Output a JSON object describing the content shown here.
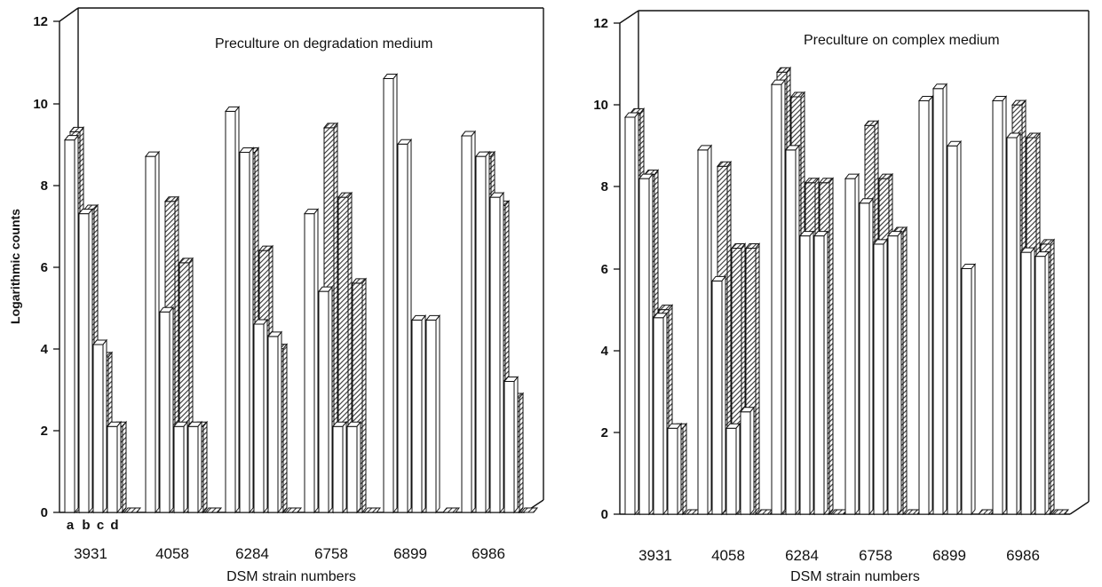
{
  "figure": {
    "bar_outline": "#111111",
    "hatch_color": "#333333"
  },
  "chart_data": [
    {
      "type": "bar",
      "title": "Preculture on degradation medium",
      "xlabel": "DSM strain numbers",
      "ylabel": "Logarithmic counts",
      "ylim": [
        0,
        12
      ],
      "yticks": [
        0,
        2,
        4,
        6,
        8,
        10,
        12
      ],
      "grid": false,
      "categories": [
        "3931",
        "4058",
        "6284",
        "6758",
        "6899",
        "6986"
      ],
      "sub_labels": [
        "a",
        "b",
        "c",
        "d"
      ],
      "series": [
        {
          "style": "open",
          "values": [
            [
              9.1,
              7.3,
              4.1,
              2.1
            ],
            [
              8.7,
              4.9,
              2.1,
              2.1
            ],
            [
              9.8,
              8.8,
              4.6,
              4.3
            ],
            [
              7.3,
              5.4,
              2.1,
              2.1
            ],
            [
              10.6,
              9.0,
              4.7,
              4.7
            ],
            [
              9.2,
              8.7,
              7.7,
              3.2
            ]
          ]
        },
        {
          "style": "hatched",
          "values": [
            [
              9.3,
              7.4,
              3.8,
              2.1
            ],
            [
              0,
              7.6,
              6.1,
              2.1
            ],
            [
              0,
              8.8,
              6.4,
              4.0
            ],
            [
              0,
              9.4,
              7.7,
              5.6
            ],
            [
              0,
              0,
              0,
              0
            ],
            [
              0,
              8.7,
              7.5,
              2.8
            ]
          ]
        }
      ]
    },
    {
      "type": "bar",
      "title": "Preculture on complex medium",
      "xlabel": "DSM strain numbers",
      "ylabel": "",
      "ylim": [
        0,
        12
      ],
      "yticks": [
        0,
        2,
        4,
        6,
        8,
        10,
        12
      ],
      "grid": false,
      "categories": [
        "3931",
        "4058",
        "6284",
        "6758",
        "6899",
        "6986"
      ],
      "sub_labels": [],
      "series": [
        {
          "style": "open",
          "values": [
            [
              9.7,
              8.2,
              4.8,
              2.1
            ],
            [
              8.9,
              5.7,
              2.1,
              2.5
            ],
            [
              10.5,
              8.9,
              6.8,
              6.8
            ],
            [
              8.2,
              7.6,
              6.6,
              6.8
            ],
            [
              10.1,
              10.4,
              9.0,
              6.0
            ],
            [
              10.1,
              9.2,
              6.4,
              6.3
            ]
          ]
        },
        {
          "style": "hatched",
          "values": [
            [
              9.8,
              8.3,
              5.0,
              2.1
            ],
            [
              0,
              8.5,
              6.5,
              6.5
            ],
            [
              10.8,
              10.2,
              8.1,
              8.1
            ],
            [
              0,
              9.5,
              8.2,
              6.9
            ],
            [
              0,
              0,
              0,
              0
            ],
            [
              0,
              10.0,
              9.2,
              6.6
            ]
          ]
        }
      ]
    }
  ]
}
